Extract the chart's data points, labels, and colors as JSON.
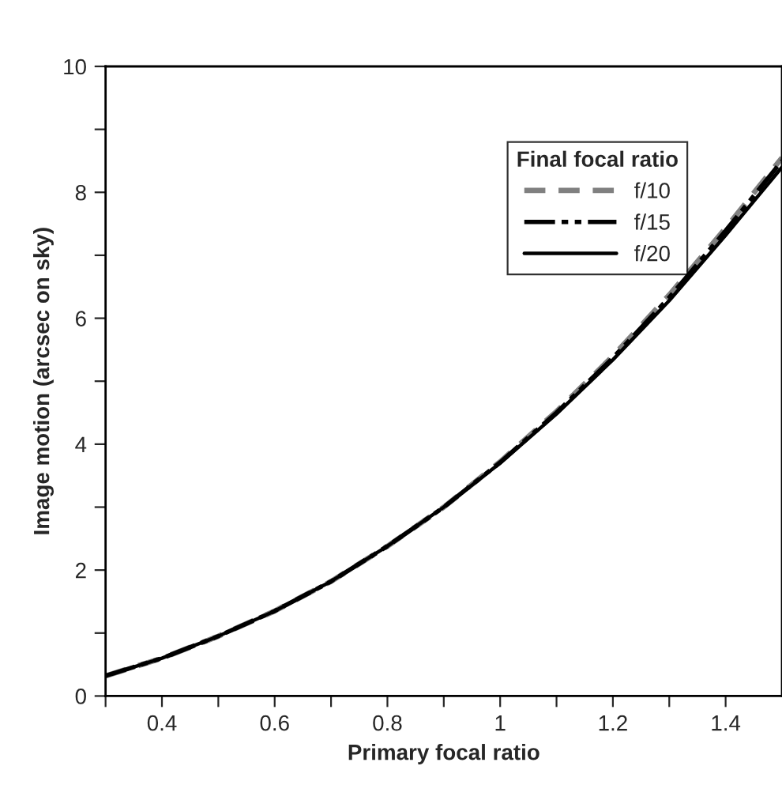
{
  "chart_data": {
    "type": "line",
    "xlabel": "Primary focal ratio",
    "ylabel": "Image motion (arcsec on sky)",
    "legend_title": "Final focal ratio",
    "legend": "top right",
    "grid": false,
    "marker": "none",
    "xlim": [
      0.3,
      1.5
    ],
    "ylim": [
      0,
      10
    ],
    "xticks": [
      {
        "value": 0.3,
        "label": null
      },
      0.4,
      {
        "value": 0.5,
        "label": null
      },
      0.6,
      {
        "value": 0.7,
        "label": null
      },
      0.8,
      {
        "value": 0.9,
        "label": null
      },
      1,
      {
        "value": 1.1,
        "label": null
      },
      1.2,
      {
        "value": 1.3,
        "label": null
      },
      1.4
    ],
    "yticks": [
      0,
      {
        "value": 1,
        "label": null
      },
      2,
      {
        "value": 3,
        "label": null
      },
      4,
      {
        "value": 5,
        "label": null
      },
      6,
      {
        "value": 7,
        "label": null
      },
      8,
      {
        "value": 9,
        "label": null
      },
      10
    ],
    "x": [
      0.3,
      0.4,
      0.5,
      0.6,
      0.7,
      0.8,
      0.9,
      1.0,
      1.1,
      1.2,
      1.3,
      1.4,
      1.5
    ],
    "series": [
      {
        "name": "f/10",
        "color": "#808080",
        "line_style": "dashed",
        "values": [
          0.32,
          0.6,
          0.95,
          1.35,
          1.82,
          2.38,
          3.0,
          3.72,
          4.52,
          5.4,
          6.37,
          7.43,
          8.55
        ]
      },
      {
        "name": "f/15",
        "color": "#000000",
        "line_style": "dashdot",
        "values": [
          0.32,
          0.6,
          0.95,
          1.35,
          1.82,
          2.38,
          3.0,
          3.71,
          4.5,
          5.37,
          6.33,
          7.39,
          8.5
        ]
      },
      {
        "name": "f/20",
        "color": "#000000",
        "line_style": "solid",
        "values": [
          0.32,
          0.6,
          0.95,
          1.35,
          1.82,
          2.38,
          3.0,
          3.7,
          4.48,
          5.34,
          6.28,
          7.32,
          8.4
        ]
      }
    ]
  }
}
